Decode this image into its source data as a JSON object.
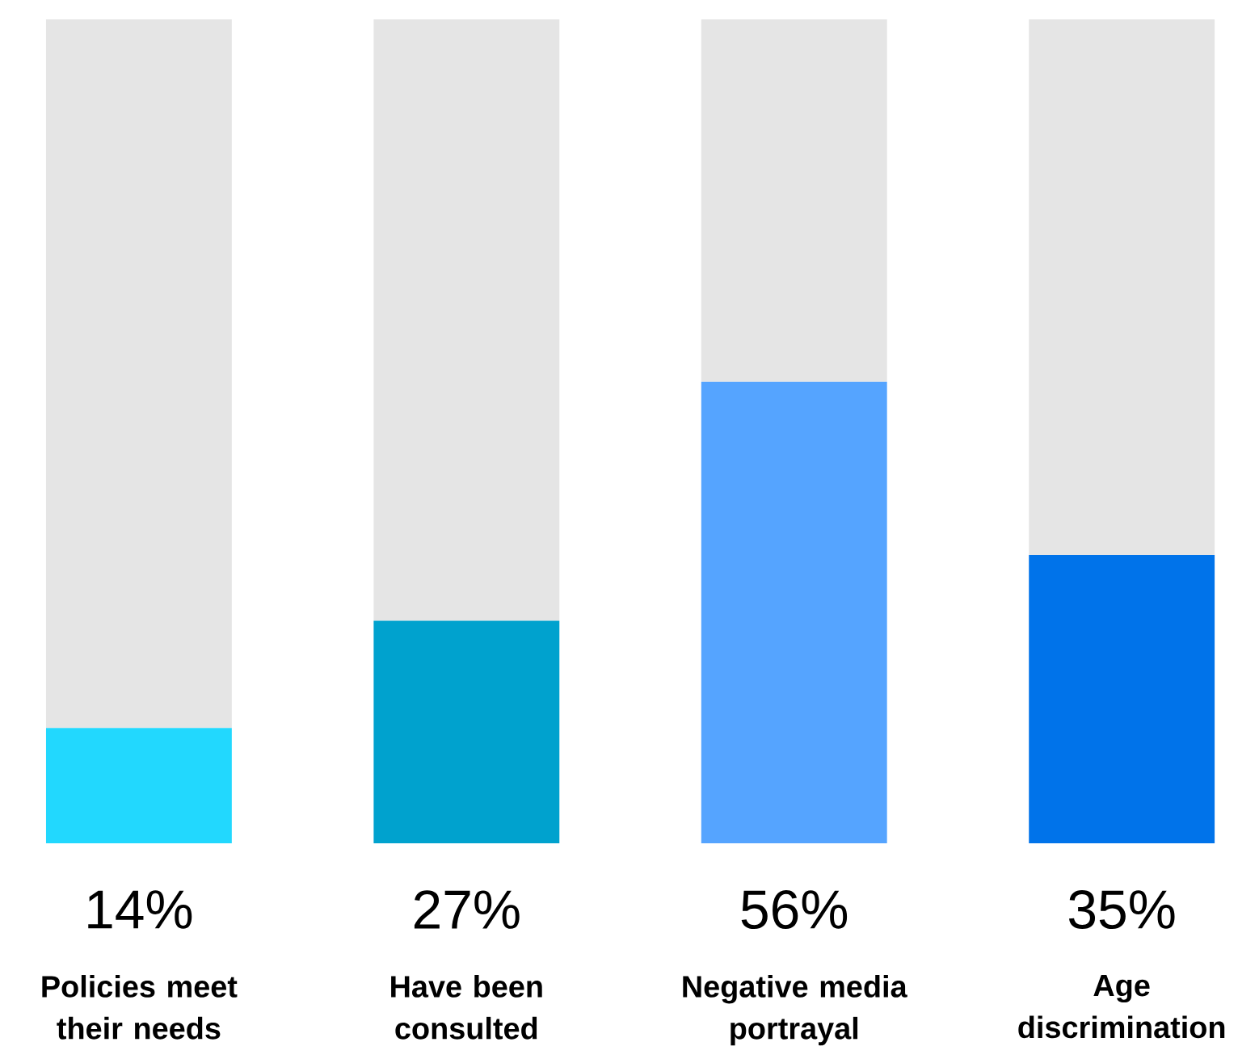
{
  "chart_data": {
    "type": "bar",
    "stacked": true,
    "categories": [
      "Policies meet their needs",
      "Have been consulted",
      "Negative media portrayal",
      "Age discrimination"
    ],
    "series": [
      {
        "values": [
          14,
          27,
          56,
          35
        ],
        "colors": [
          "#22d8fe",
          "#00a2ce",
          "#55a4ff",
          "#0073ea"
        ],
        "value_labels": [
          "14%",
          "27%",
          "56%",
          "35%"
        ]
      },
      {
        "values": [
          86,
          73,
          44,
          65
        ],
        "color": "#e5e5e5"
      }
    ],
    "ylim": [
      0,
      100
    ],
    "tick_labels": "x"
  }
}
